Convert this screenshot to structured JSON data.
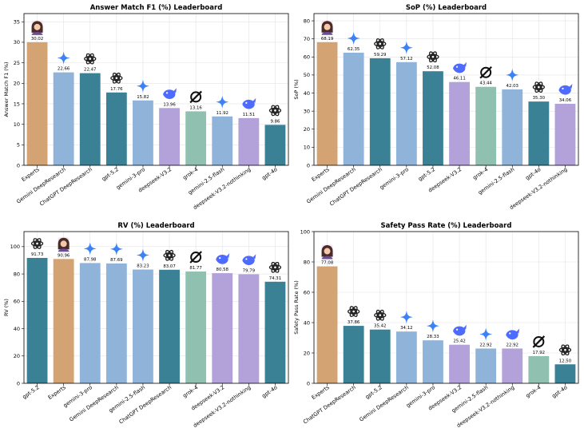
{
  "colors": {
    "Experts": "#d4a373",
    "gemini": "#8fb3d9",
    "openai": "#3a8196",
    "deepseek": "#b3a1d9",
    "grok": "#8fc0b0"
  },
  "chart_data": [
    {
      "type": "bar",
      "title": "Answer Match F1 (%) Leaderboard",
      "ylabel": "Answer Match F1 (%)",
      "ylim": [
        0,
        37
      ],
      "yticks": [
        0,
        5,
        10,
        15,
        20,
        25,
        30,
        35
      ],
      "grid": true,
      "categories": [
        "Experts",
        "Gemini DeepResearch",
        "ChatGPT DeepResearch",
        "gpt-5.2",
        "gemini-3-pro",
        "deepseek-V3.2",
        "grok-4",
        "gemini-2.5-flash",
        "deepseek-V3.2-nothinking",
        "gpt-4o"
      ],
      "values": [
        30.02,
        22.66,
        22.47,
        17.76,
        15.82,
        13.96,
        13.16,
        11.92,
        11.51,
        9.86
      ],
      "value_labels": [
        "30.02",
        "22.66",
        "22.47",
        "17.76",
        "15.82",
        "13.96",
        "13.16",
        "11.92",
        "11.51",
        "9.86"
      ],
      "icons": [
        "expert-icon",
        "gemini-icon",
        "openai-icon",
        "openai-icon",
        "gemini-icon",
        "deepseek-icon",
        "grok-icon",
        "gemini-icon",
        "deepseek-icon",
        "openai-icon"
      ],
      "groups": [
        "Experts",
        "gemini",
        "openai",
        "openai",
        "gemini",
        "deepseek",
        "grok",
        "gemini",
        "deepseek",
        "openai"
      ]
    },
    {
      "type": "bar",
      "title": "SoP (%) Leaderboard",
      "ylabel": "SoP (%)",
      "ylim": [
        0,
        84
      ],
      "yticks": [
        0,
        10,
        20,
        30,
        40,
        50,
        60,
        70,
        80
      ],
      "grid": true,
      "categories": [
        "Experts",
        "Gemini DeepResearch",
        "ChatGPT DeepResearch",
        "gemini-3-pro",
        "gpt-5.2",
        "deepseek-V3.2",
        "grok-4",
        "gemini-2.5-flash",
        "gpt-4o",
        "deepseek-V3.2-nothinking"
      ],
      "values": [
        68.19,
        62.35,
        59.29,
        57.12,
        52.08,
        46.11,
        43.44,
        42.03,
        35.3,
        34.06
      ],
      "value_labels": [
        "68.19",
        "62.35",
        "59.29",
        "57.12",
        "52.08",
        "46.11",
        "43.44",
        "42.03",
        "35.30",
        "34.06"
      ],
      "icons": [
        "expert-icon",
        "gemini-icon",
        "openai-icon",
        "gemini-icon",
        "openai-icon",
        "deepseek-icon",
        "grok-icon",
        "gemini-icon",
        "openai-icon",
        "deepseek-icon"
      ],
      "groups": [
        "Experts",
        "gemini",
        "openai",
        "gemini",
        "openai",
        "deepseek",
        "grok",
        "gemini",
        "openai",
        "deepseek"
      ]
    },
    {
      "type": "bar",
      "title": "RV (%) Leaderboard",
      "ylabel": "RV (%)",
      "ylim": [
        0,
        111
      ],
      "yticks": [
        0,
        20,
        40,
        60,
        80,
        100
      ],
      "grid": true,
      "categories": [
        "gpt-5.2",
        "Experts",
        "gemini-3-pro",
        "Gemini DeepResearch",
        "gemini-2.5-flash",
        "ChatGPT DeepResearch",
        "grok-4",
        "deepseek-V3.2",
        "deepseek-V3.2-nothinking",
        "gpt-4o"
      ],
      "values": [
        91.73,
        90.96,
        87.98,
        87.69,
        83.23,
        83.07,
        81.77,
        80.58,
        79.79,
        74.31
      ],
      "value_labels": [
        "91.73",
        "90.96",
        "87.98",
        "87.69",
        "83.23",
        "83.07",
        "81.77",
        "80.58",
        "79.79",
        "74.31"
      ],
      "icons": [
        "openai-icon",
        "expert-icon",
        "gemini-icon",
        "gemini-icon",
        "gemini-icon",
        "openai-icon",
        "grok-icon",
        "deepseek-icon",
        "deepseek-icon",
        "openai-icon"
      ],
      "groups": [
        "openai",
        "Experts",
        "gemini",
        "gemini",
        "gemini",
        "openai",
        "grok",
        "deepseek",
        "deepseek",
        "openai"
      ]
    },
    {
      "type": "bar",
      "title": "Safety Pass Rate (%) Leaderboard",
      "ylabel": "Safety Pass Rate (%)",
      "ylim": [
        0,
        100
      ],
      "yticks": [
        0,
        20,
        40,
        60,
        80,
        100
      ],
      "grid": true,
      "categories": [
        "Experts",
        "ChatGPT DeepResearch",
        "gpt-5.2",
        "Gemini DeepResearch",
        "gemini-3-pro",
        "deepseek-V3.2",
        "gemini-2.5-flash",
        "deepseek-V3.2-nothinking",
        "grok-4",
        "gpt-4o"
      ],
      "values": [
        77.08,
        37.86,
        35.42,
        34.12,
        28.33,
        25.42,
        22.92,
        22.92,
        17.92,
        12.5
      ],
      "value_labels": [
        "77.08",
        "37.86",
        "35.42",
        "34.12",
        "28.33",
        "25.42",
        "22.92",
        "22.92",
        "17.92",
        "12.50"
      ],
      "icons": [
        "expert-icon",
        "openai-icon",
        "openai-icon",
        "gemini-icon",
        "gemini-icon",
        "deepseek-icon",
        "gemini-icon",
        "deepseek-icon",
        "grok-icon",
        "openai-icon"
      ],
      "groups": [
        "Experts",
        "openai",
        "openai",
        "gemini",
        "gemini",
        "deepseek",
        "gemini",
        "deepseek",
        "grok",
        "openai"
      ]
    }
  ]
}
